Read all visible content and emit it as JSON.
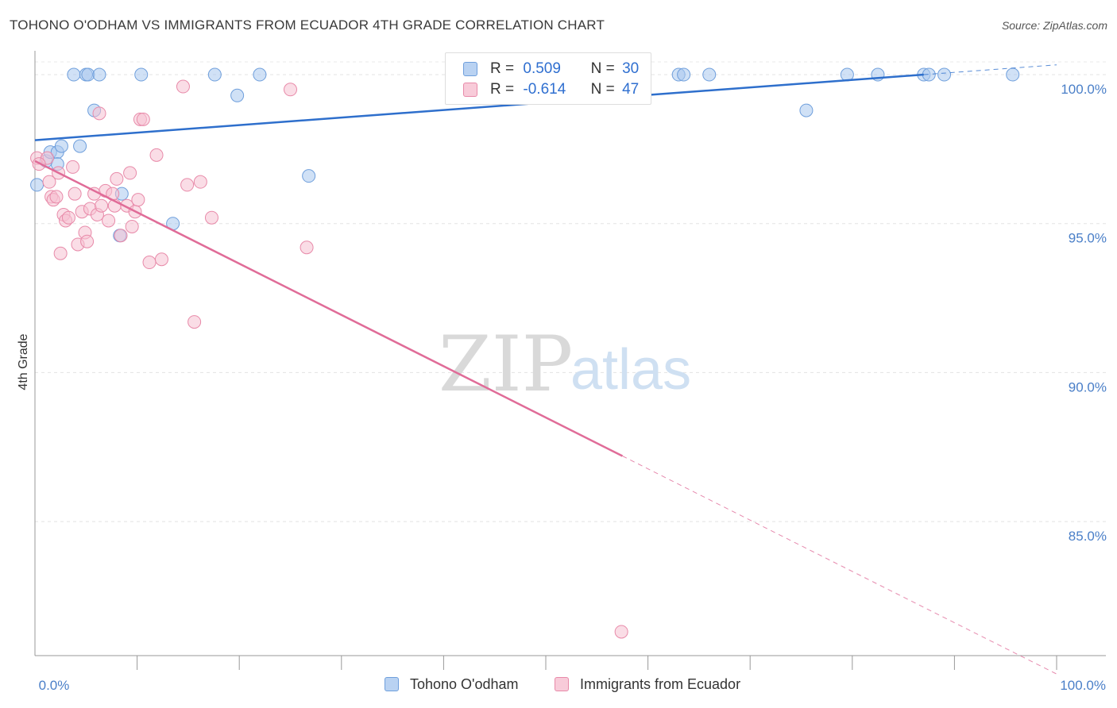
{
  "chart_data": {
    "type": "scatter",
    "title": "TOHONO O'ODHAM VS IMMIGRANTS FROM ECUADOR 4TH GRADE CORRELATION CHART",
    "source": "Source: ZipAtlas.com",
    "xlabel": "",
    "ylabel": "4th Grade",
    "xlim": [
      0,
      100
    ],
    "ylim": [
      80.5,
      100.8
    ],
    "x_tick_labels": [
      "0.0%",
      "100.0%"
    ],
    "y_ticks": [
      85,
      90,
      95,
      100
    ],
    "y_tick_labels": [
      "85.0%",
      "90.0%",
      "95.0%",
      "100.0%"
    ],
    "grid": true,
    "watermark": {
      "zip": "ZIP",
      "atlas": "atlas"
    },
    "legend": [
      {
        "r_label": "R =",
        "r_value": "0.509",
        "n_label": "N =",
        "n_value": "30"
      },
      {
        "r_label": "R =",
        "r_value": "-0.614",
        "n_label": "N =",
        "n_value": "47"
      }
    ],
    "series": [
      {
        "name": "Tohono O'odham",
        "color": "#a9c8ef",
        "edge": "#6f9fdc",
        "line_color": "#2e6fcc",
        "trend": {
          "x0": 0,
          "y0": 97.8,
          "x1": 87,
          "y1": 100.0,
          "dash_to": 100
        },
        "points": [
          [
            0.2,
            96.3
          ],
          [
            1.1,
            97.1
          ],
          [
            1.5,
            97.4
          ],
          [
            2.2,
            97.4
          ],
          [
            2.2,
            97.0
          ],
          [
            2.6,
            97.6
          ],
          [
            4.4,
            97.6
          ],
          [
            3.8,
            100.0
          ],
          [
            5.0,
            100.0
          ],
          [
            5.2,
            100.0
          ],
          [
            6.3,
            100.0
          ],
          [
            10.4,
            100.0
          ],
          [
            17.6,
            100.0
          ],
          [
            22.0,
            100.0
          ],
          [
            5.8,
            98.8
          ],
          [
            19.8,
            99.3
          ],
          [
            8.5,
            96.0
          ],
          [
            8.3,
            94.6
          ],
          [
            13.5,
            95.0
          ],
          [
            26.8,
            96.6
          ],
          [
            63.0,
            100.0
          ],
          [
            63.5,
            100.0
          ],
          [
            66.0,
            100.0
          ],
          [
            79.5,
            100.0
          ],
          [
            82.5,
            100.0
          ],
          [
            87.0,
            100.0
          ],
          [
            87.5,
            100.0
          ],
          [
            89.0,
            100.0
          ],
          [
            95.7,
            100.0
          ],
          [
            75.5,
            98.8
          ]
        ]
      },
      {
        "name": "Immigrants from Ecuador",
        "color": "#f6c1d2",
        "edge": "#e88aa9",
        "line_color": "#e06c98",
        "trend": {
          "x0": 0,
          "y0": 97.1,
          "x1": 57.5,
          "y1": 87.2,
          "dash_to": 100
        },
        "points": [
          [
            0.2,
            97.2
          ],
          [
            1.2,
            97.2
          ],
          [
            1.4,
            96.4
          ],
          [
            1.6,
            95.9
          ],
          [
            1.8,
            95.8
          ],
          [
            2.1,
            95.9
          ],
          [
            2.3,
            96.7
          ],
          [
            2.5,
            94.0
          ],
          [
            2.8,
            95.3
          ],
          [
            3.0,
            95.1
          ],
          [
            3.3,
            95.2
          ],
          [
            3.7,
            96.9
          ],
          [
            3.9,
            96.0
          ],
          [
            4.2,
            94.3
          ],
          [
            4.6,
            95.4
          ],
          [
            4.9,
            94.7
          ],
          [
            5.1,
            94.4
          ],
          [
            5.4,
            95.5
          ],
          [
            5.8,
            96.0
          ],
          [
            6.1,
            95.3
          ],
          [
            6.5,
            95.6
          ],
          [
            6.9,
            96.1
          ],
          [
            7.2,
            95.1
          ],
          [
            7.6,
            96.0
          ],
          [
            7.8,
            95.6
          ],
          [
            8.0,
            96.5
          ],
          [
            8.4,
            94.6
          ],
          [
            9.0,
            95.6
          ],
          [
            9.3,
            96.7
          ],
          [
            9.5,
            94.9
          ],
          [
            9.8,
            95.4
          ],
          [
            10.1,
            95.8
          ],
          [
            10.3,
            98.5
          ],
          [
            10.6,
            98.5
          ],
          [
            11.2,
            93.7
          ],
          [
            11.9,
            97.3
          ],
          [
            12.4,
            93.8
          ],
          [
            14.9,
            96.3
          ],
          [
            14.5,
            99.6
          ],
          [
            15.6,
            91.7
          ],
          [
            16.2,
            96.4
          ],
          [
            17.3,
            95.2
          ],
          [
            25.0,
            99.5
          ],
          [
            26.6,
            94.2
          ],
          [
            6.3,
            98.7
          ],
          [
            57.4,
            81.3
          ],
          [
            0.4,
            97.0
          ]
        ]
      }
    ]
  }
}
